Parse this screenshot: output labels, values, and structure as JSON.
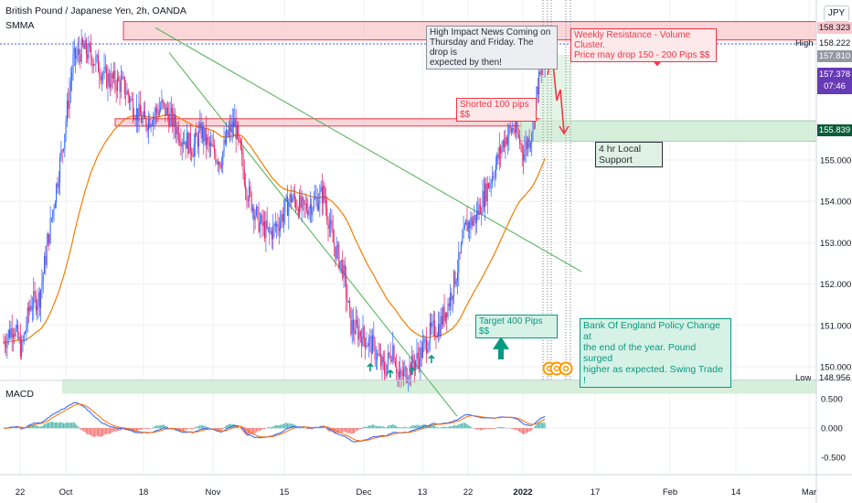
{
  "header": {
    "symbol_title": "British Pound / Japanese Yen, 2h, OANDA",
    "indicator": "SMMA",
    "currency": "JPY"
  },
  "macd_label": "MACD",
  "price_badges": {
    "high_label": "High",
    "low_label": "Low",
    "high_value": "158.323",
    "high_level": "158.222",
    "dotted_level": "157.810",
    "last_price": "157.378",
    "countdown": "07:46",
    "support_level": "155.839",
    "low_value": "148.956"
  },
  "annotations": {
    "news_note": "High Impact News Coming on\nThursday and Friday. The drop is\nexpected by then!",
    "resistance_note": "Weekly Resistance - Volume Cluster.\nPrice may drop 150 - 200 Pips $$",
    "shorted_note": "Shorted 100 pips $$",
    "support_note": "4 hr Local\nSupport",
    "target_note": "Target 400 Pips $$",
    "boe_note": "Bank Of England Policy Change at\nthe end of the year. Pound surged\nhigher as expected. Swing Trade !"
  },
  "colors": {
    "candle_up": "#2962ff",
    "candle_down": "#e91e63",
    "smma": "#f57c00",
    "macd_line": "#2962ff",
    "signal_line": "#ff6d00",
    "resistance_zone": "#f8c8cc",
    "support_zone": "#d6efdb",
    "trendline": "#4caf50",
    "accent_red": "#f23645",
    "accent_green": "#089981"
  },
  "chart_data": {
    "type": "candlestick",
    "title": "British Pound / Japanese Yen, 2h, OANDA",
    "y_ticks": [
      "150.000",
      "151.000",
      "152.000",
      "153.000",
      "154.000",
      "155.000"
    ],
    "macd_ticks": [
      "0.500",
      "0.000",
      "-0.500"
    ],
    "x_ticks": [
      "22",
      "Oct",
      "18",
      "Nov",
      "15",
      "Dec",
      "13",
      "22",
      "2022",
      "17",
      "Feb",
      "14",
      "Mar"
    ],
    "ylim": [
      148.8,
      158.6
    ],
    "series": [
      {
        "name": "SMMA",
        "type": "line"
      },
      {
        "name": "MACD",
        "type": "line"
      }
    ],
    "close_anchors": [
      [
        0,
        150.6
      ],
      [
        8,
        151.0
      ],
      [
        15,
        150.4
      ],
      [
        22,
        151.5
      ],
      [
        30,
        151.7
      ],
      [
        40,
        153.6
      ],
      [
        50,
        155.5
      ],
      [
        58,
        157.4
      ],
      [
        66,
        157.7
      ],
      [
        74,
        157.5
      ],
      [
        85,
        157.0
      ],
      [
        93,
        156.9
      ],
      [
        100,
        156.8
      ],
      [
        110,
        156.2
      ],
      [
        118,
        155.9
      ],
      [
        125,
        156.1
      ],
      [
        132,
        156.3
      ],
      [
        140,
        156.0
      ],
      [
        148,
        155.6
      ],
      [
        158,
        155.3
      ],
      [
        165,
        155.7
      ],
      [
        172,
        155.3
      ],
      [
        181,
        155.0
      ],
      [
        187,
        155.6
      ],
      [
        193,
        155.9
      ],
      [
        203,
        154.3
      ],
      [
        213,
        153.5
      ],
      [
        222,
        153.2
      ],
      [
        230,
        153.5
      ],
      [
        240,
        154.1
      ],
      [
        250,
        153.8
      ],
      [
        260,
        154.0
      ],
      [
        267,
        154.2
      ],
      [
        275,
        153.0
      ],
      [
        283,
        152.4
      ],
      [
        290,
        151.0
      ],
      [
        298,
        150.8
      ],
      [
        308,
        150.5
      ],
      [
        318,
        149.9
      ],
      [
        325,
        150.5
      ],
      [
        330,
        149.7
      ],
      [
        340,
        150.0
      ],
      [
        348,
        150.3
      ],
      [
        356,
        150.8
      ],
      [
        364,
        151.0
      ],
      [
        372,
        151.6
      ],
      [
        380,
        152.5
      ],
      [
        386,
        153.4
      ],
      [
        394,
        153.6
      ],
      [
        402,
        154.2
      ],
      [
        410,
        154.8
      ],
      [
        418,
        155.5
      ],
      [
        426,
        155.8
      ],
      [
        434,
        155.2
      ],
      [
        440,
        155.6
      ],
      [
        446,
        156.8
      ],
      [
        452,
        157.4
      ]
    ],
    "annotations": [
      {
        "text": "Shorted 100 pips $$"
      },
      {
        "text": "Target 400 Pips $$"
      },
      {
        "text": "4 hr Local Support"
      }
    ]
  }
}
